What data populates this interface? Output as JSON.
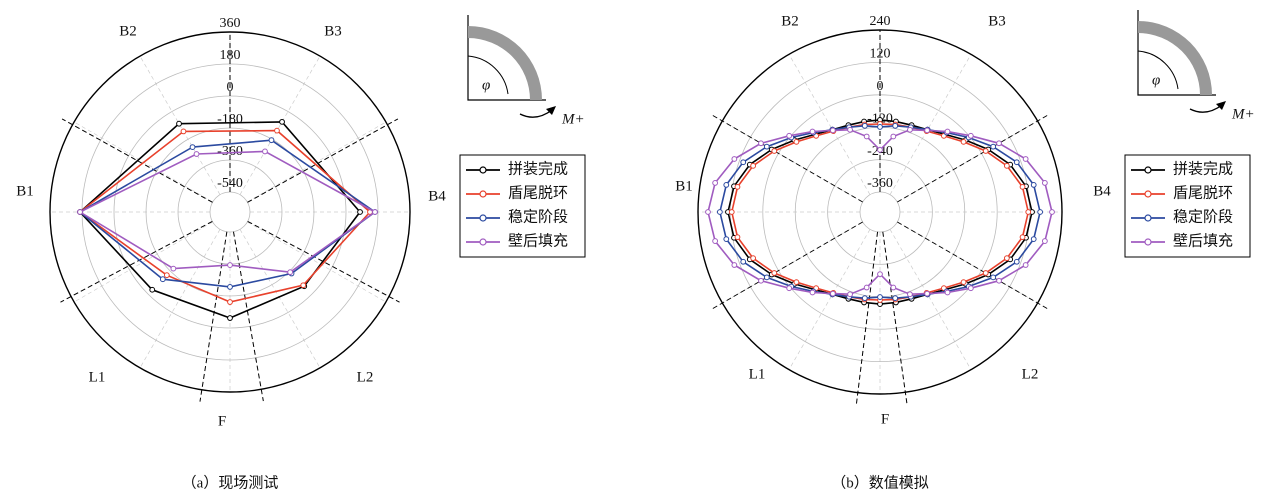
{
  "chart_data": [
    {
      "type": "radar",
      "caption": "（a）现场测试",
      "direction_labels": [
        "B2",
        "B3",
        "B1",
        "B4",
        "L1",
        "L2",
        "F"
      ],
      "inset": {
        "angle": "φ",
        "moment": "M+"
      },
      "ylim": [
        -540,
        360
      ],
      "yticks": [
        -540,
        -360,
        -180,
        0,
        180,
        360
      ],
      "theta": [
        120,
        60,
        0,
        315,
        270,
        225,
        180
      ],
      "markers": true,
      "legend": "right",
      "series": [
        {
          "name": "拼装完成",
          "color": "#000000",
          "values": [
            -79,
            -67,
            79,
            -62,
            -56,
            -34,
            191
          ]
        },
        {
          "name": "盾尾脱环",
          "color": "#e8412c",
          "values": [
            -129,
            -124,
            135,
            -70,
            -146,
            -150,
            191
          ]
        },
        {
          "name": "稳定阶段",
          "color": "#2b4aa0",
          "values": [
            -231,
            -186,
            163,
            -163,
            -231,
            -118,
            191
          ]
        },
        {
          "name": "壁后填充",
          "color": "#a05cc0",
          "values": [
            -276,
            -259,
            163,
            -174,
            -354,
            -202,
            191
          ]
        }
      ]
    },
    {
      "type": "radar",
      "caption": "（b）数值模拟",
      "direction_labels": [
        "B2",
        "B3",
        "B1",
        "B4",
        "L1",
        "L2",
        "F"
      ],
      "inset": {
        "angle": "φ",
        "moment": "M+"
      },
      "ylim": [
        -360,
        240
      ],
      "yticks": [
        -360,
        -240,
        -120,
        0,
        120,
        240
      ],
      "theta": [
        0,
        10,
        20,
        30,
        40,
        50,
        60,
        70,
        80,
        90,
        100,
        110,
        120,
        130,
        140,
        150,
        160,
        170,
        180,
        190,
        200,
        210,
        220,
        230,
        240,
        250,
        260,
        270,
        280,
        290,
        300,
        310,
        320,
        330,
        340,
        350
      ],
      "markers": true,
      "legend": "right",
      "series": [
        {
          "name": "拼装完成",
          "color": "#000000",
          "values": [
            129,
            115,
            79,
            29,
            -20,
            -59,
            -82,
            -92,
            -94,
            -93,
            -94,
            -92,
            -82,
            -59,
            -20,
            29,
            79,
            115,
            129,
            115,
            79,
            29,
            -20,
            -59,
            -82,
            -92,
            -94,
            -93,
            -94,
            -92,
            -82,
            -59,
            -20,
            29,
            79,
            115
          ]
        },
        {
          "name": "盾尾脱环",
          "color": "#e8412c",
          "values": [
            115,
            102,
            66,
            18,
            -30,
            -66,
            -88,
            -100,
            -105,
            -108,
            -105,
            -100,
            -88,
            -66,
            -30,
            18,
            66,
            102,
            115,
            102,
            66,
            18,
            -30,
            -66,
            -88,
            -100,
            -105,
            -108,
            -105,
            -100,
            -88,
            -66,
            -30,
            18,
            66,
            102
          ]
        },
        {
          "name": "稳定阶段",
          "color": "#2b4aa0",
          "values": [
            159,
            144,
            105,
            50,
            -5,
            -50,
            -82,
            -100,
            -110,
            -119,
            -110,
            -100,
            -82,
            -50,
            -5,
            50,
            105,
            144,
            159,
            144,
            105,
            50,
            -5,
            -50,
            -82,
            -100,
            -110,
            -119,
            -110,
            -100,
            -82,
            -50,
            -5,
            50,
            105,
            144
          ]
        },
        {
          "name": "壁后填充",
          "color": "#a05cc0",
          "values": [
            203,
            186,
            140,
            75,
            5,
            -45,
            -85,
            -110,
            -150,
            -204,
            -150,
            -110,
            -85,
            -45,
            5,
            75,
            140,
            186,
            203,
            186,
            140,
            75,
            5,
            -45,
            -85,
            -110,
            -150,
            -204,
            -150,
            -110,
            -85,
            -45,
            5,
            75,
            140,
            186
          ]
        }
      ]
    }
  ]
}
